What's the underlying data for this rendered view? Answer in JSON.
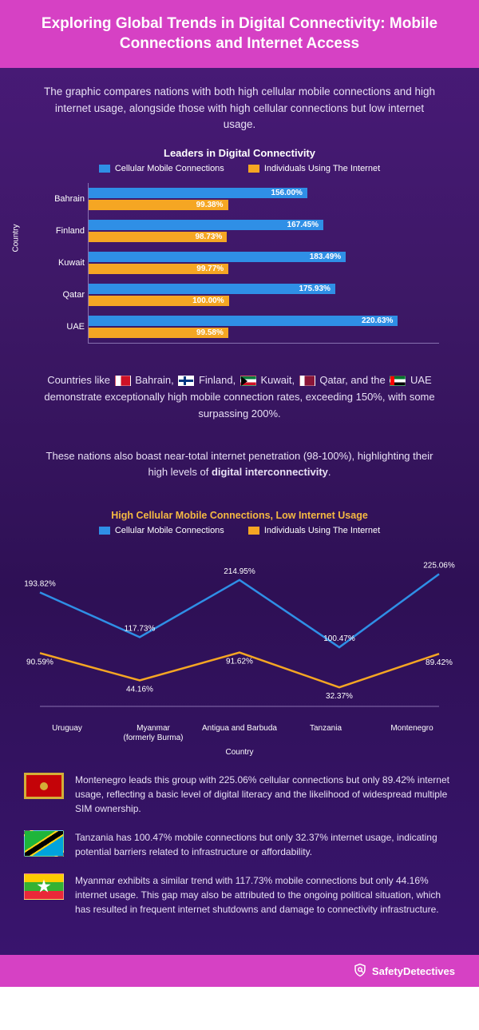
{
  "header": {
    "title": "Exploring Global Trends in Digital Connectivity: Mobile Connections and Internet Access"
  },
  "intro": "The graphic compares nations with both high cellular mobile connections and high internet usage, alongside those with high cellular connections but low internet usage.",
  "chart1": {
    "type": "grouped-horizontal-bar",
    "title": "Leaders in Digital Connectivity",
    "y_axis_label": "Country",
    "xmax": 250,
    "legend": [
      {
        "label": "Cellular Mobile Connections",
        "color": "#2f8fe6"
      },
      {
        "label": "Individuals Using The Internet",
        "color": "#f5a623"
      }
    ],
    "rows": [
      {
        "country": "Bahrain",
        "mobile": 156.0,
        "internet": 99.38
      },
      {
        "country": "Finland",
        "mobile": 167.45,
        "internet": 98.73
      },
      {
        "country": "Kuwait",
        "mobile": 183.49,
        "internet": 99.77
      },
      {
        "country": "Qatar",
        "mobile": 175.93,
        "internet": 100.0
      },
      {
        "country": "UAE",
        "mobile": 220.63,
        "internet": 99.58
      }
    ],
    "colors": {
      "mobile": "#2f8fe6",
      "internet": "#f5a623"
    }
  },
  "mid_text_1_pre": "Countries like ",
  "mid_text_1_countries": [
    "Bahrain,",
    "Finland,",
    "Kuwait,",
    "Qatar,"
  ],
  "mid_text_1_post_pre": "and the ",
  "mid_text_1_post": " UAE demonstrate exceptionally high mobile connection rates, exceeding 150%, with some surpassing 200%.",
  "mid_text_2_a": "These nations also boast near-total internet penetration (98-100%), highlighting their high levels of ",
  "mid_text_2_b": "digital interconnectivity",
  "mid_text_2_c": ".",
  "chart2": {
    "type": "line",
    "title": "High Cellular Mobile Connections, Low Internet Usage",
    "x_axis_label": "Country",
    "ymax": 250,
    "legend": [
      {
        "label": "Cellular Mobile Connections",
        "color": "#2f8fe6"
      },
      {
        "label": "Individuals Using The Internet",
        "color": "#f5a623"
      }
    ],
    "categories": [
      "Uruguay",
      "Myanmar\n(formerly Burma)",
      "Antigua and Barbuda",
      "Tanzania",
      "Montenegro"
    ],
    "series": {
      "mobile": {
        "color": "#2f8fe6",
        "values": [
          193.82,
          117.73,
          214.95,
          100.47,
          225.06
        ]
      },
      "internet": {
        "color": "#f5a623",
        "values": [
          90.59,
          44.16,
          91.62,
          32.37,
          89.42
        ]
      }
    }
  },
  "notes": [
    {
      "flag": "montenegro",
      "text": "Montenegro leads this group with 225.06% cellular connections but only 89.42% internet usage, reflecting a basic level of digital literacy and the likelihood of widespread multiple SIM ownership."
    },
    {
      "flag": "tanzania",
      "text": "Tanzania has 100.47% mobile connections but only 32.37% internet usage, indicating potential barriers related to infrastructure or affordability."
    },
    {
      "flag": "myanmar",
      "text": "Myanmar exhibits a similar trend with 117.73% mobile connections but only 44.16% internet usage. This gap may also be attributed to the ongoing political situation, which has resulted in frequent internet shutdowns and damage to connectivity infrastructure."
    }
  ],
  "footer": {
    "brand_a": "Safety",
    "brand_b": "Detectives"
  },
  "styling": {
    "background_gradient": [
      "#4a1a7a",
      "#3d1866",
      "#2e1055",
      "#3a1570"
    ],
    "header_bg": "#d641c4",
    "footer_bg": "#d641c4",
    "text_color": "#ffffff",
    "body_text_color": "#e8e0f5",
    "axis_color": "#8870b0",
    "title_fontsize": 19,
    "body_fontsize": 13,
    "chart_label_fontsize": 10,
    "note_fontsize": 12
  }
}
